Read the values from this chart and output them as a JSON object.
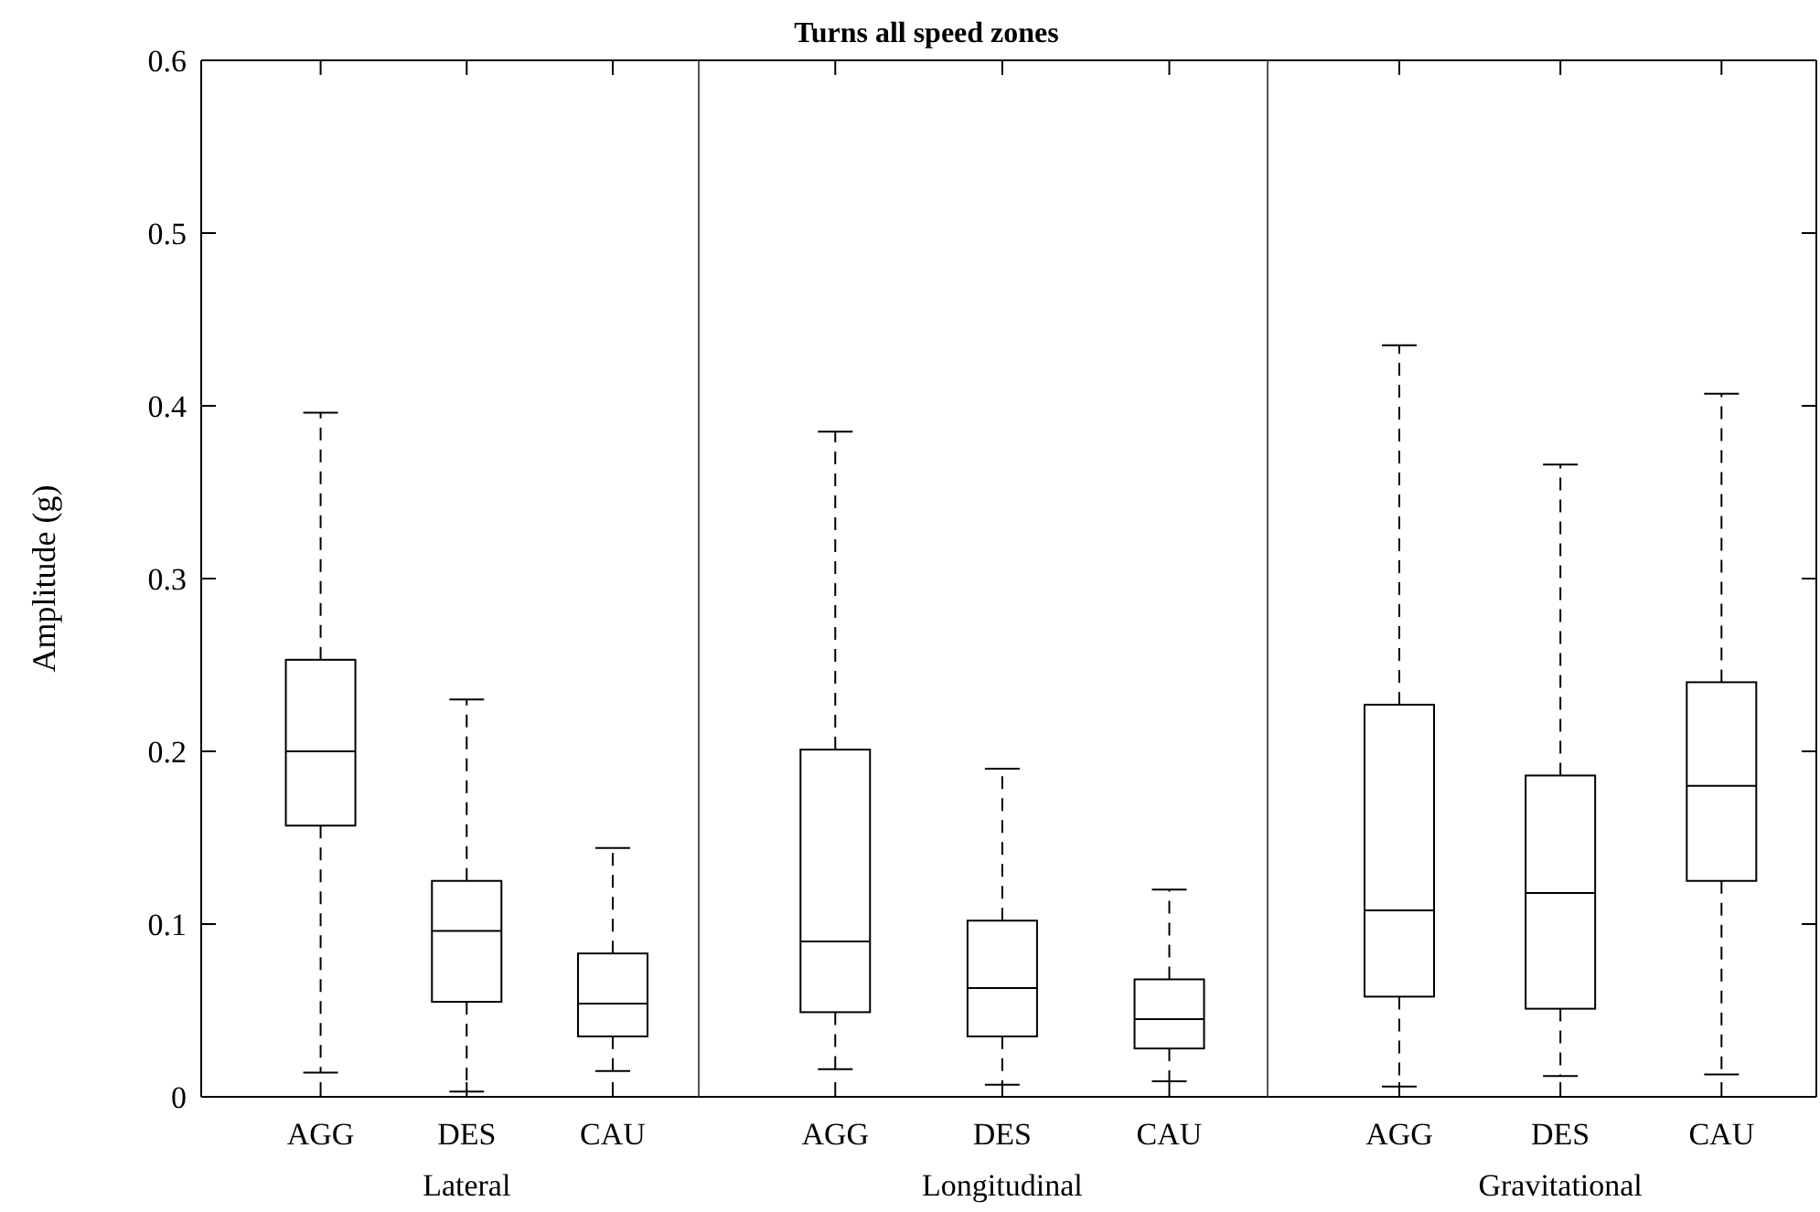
{
  "chart_data": [
    {
      "type": "box",
      "ylabel": "Amplitude (g)",
      "xlabel": "Lateral",
      "categories": [
        "AGG",
        "DES",
        "CAU"
      ],
      "ylim": [
        0,
        0.6
      ],
      "yticks": [
        0,
        0.1,
        0.2,
        0.3,
        0.4,
        0.5,
        0.6
      ],
      "boxes": [
        {
          "low": 0.014,
          "q1": 0.157,
          "median": 0.2,
          "q3": 0.253,
          "high": 0.396
        },
        {
          "low": 0.003,
          "q1": 0.055,
          "median": 0.096,
          "q3": 0.125,
          "high": 0.23
        },
        {
          "low": 0.015,
          "q1": 0.035,
          "median": 0.054,
          "q3": 0.083,
          "high": 0.144
        }
      ]
    },
    {
      "type": "box",
      "title": "Turns all speed zones",
      "xlabel": "Longitudinal",
      "categories": [
        "AGG",
        "DES",
        "CAU"
      ],
      "ylim": [
        0,
        0.6
      ],
      "yticks": [
        0,
        0.1,
        0.2,
        0.3,
        0.4,
        0.5,
        0.6
      ],
      "tick_labels": "x",
      "boxes": [
        {
          "low": 0.016,
          "q1": 0.049,
          "median": 0.09,
          "q3": 0.201,
          "high": 0.385
        },
        {
          "low": 0.007,
          "q1": 0.035,
          "median": 0.063,
          "q3": 0.102,
          "high": 0.19
        },
        {
          "low": 0.009,
          "q1": 0.028,
          "median": 0.045,
          "q3": 0.068,
          "high": 0.12
        }
      ]
    },
    {
      "type": "box",
      "xlabel": "Gravitational",
      "categories": [
        "AGG",
        "DES",
        "CAU"
      ],
      "ylim": [
        0,
        0.6
      ],
      "yticks": [
        0,
        0.1,
        0.2,
        0.3,
        0.4,
        0.5,
        0.6
      ],
      "tick_labels": "x",
      "boxes": [
        {
          "low": 0.006,
          "q1": 0.058,
          "median": 0.108,
          "q3": 0.227,
          "high": 0.435
        },
        {
          "low": 0.012,
          "q1": 0.051,
          "median": 0.118,
          "q3": 0.186,
          "high": 0.366
        },
        {
          "low": 0.013,
          "q1": 0.125,
          "median": 0.18,
          "q3": 0.24,
          "high": 0.407
        }
      ]
    }
  ]
}
